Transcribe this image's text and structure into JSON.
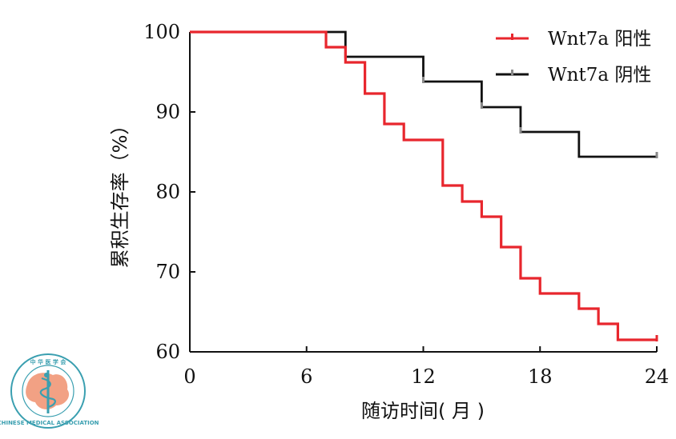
{
  "chart_data": {
    "type": "line",
    "step": true,
    "title": "",
    "xlabel": "随访时间( 月 )",
    "ylabel": "累积生存率（%）",
    "xlim": [
      0,
      24
    ],
    "ylim": [
      60,
      100
    ],
    "xticks": [
      "0",
      "6",
      "12",
      "18",
      "24"
    ],
    "yticks": [
      "60",
      "70",
      "80",
      "90",
      "100"
    ],
    "grid": false,
    "legend_position": "top-right",
    "series": [
      {
        "name": "Wnt7a 阳性",
        "color": "#e8262d",
        "x": [
          0,
          7,
          8,
          9,
          10,
          11,
          13,
          14,
          15,
          16,
          17,
          18,
          20,
          21,
          22,
          24
        ],
        "y": [
          100,
          98.1,
          96.2,
          92.3,
          88.5,
          86.5,
          80.8,
          78.8,
          76.9,
          73.1,
          69.2,
          67.3,
          65.4,
          63.5,
          61.5,
          61.5
        ],
        "censored": [
          24
        ]
      },
      {
        "name": "Wnt7a 阴性",
        "color": "#111111",
        "x": [
          0,
          8,
          12,
          15,
          17,
          20,
          24
        ],
        "y": [
          100,
          96.9,
          93.8,
          90.6,
          87.5,
          84.4,
          84.4
        ],
        "censored": [
          8,
          12,
          15,
          17,
          24
        ]
      }
    ]
  },
  "logo": {
    "top_text": "中华医学会",
    "bottom_text": "CHINESE MEDICAL ASSOCIATION"
  }
}
